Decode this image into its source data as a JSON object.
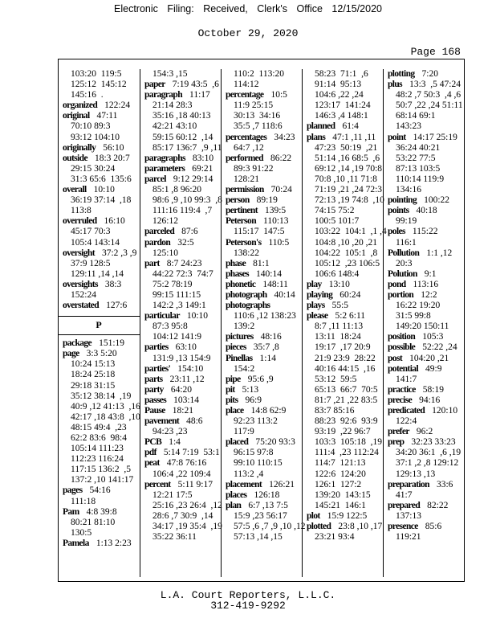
{
  "header": {
    "filing": "Electronic Filing: Received, Clerk's Office 12/15/2020",
    "date": "October 29, 2020",
    "page": "Page 168"
  },
  "footer": {
    "company": "L.A. Court Reporters, L.L.C.",
    "phone": "312-419-9292"
  },
  "columns": [
    [
      {
        "refs": [
          "103:20  119:5",
          "125:12  145:12",
          "145:16  ."
        ]
      },
      {
        "term": "organized",
        "refs": [
          "122:24"
        ]
      },
      {
        "term": "original",
        "refs": [
          "47:11",
          "70:10 89:3",
          "93:12 104:10"
        ]
      },
      {
        "term": "originally",
        "refs": [
          "56:10"
        ]
      },
      {
        "term": "outside",
        "refs": [
          "18:3 20:7",
          "29:15 30:24",
          "31:3 65:6  135:6"
        ]
      },
      {
        "term": "overall",
        "refs": [
          "10:10",
          "36:19 37:14  ,18",
          "113:8"
        ]
      },
      {
        "term": "overruled",
        "refs": [
          "16:10",
          "45:17 70:3",
          "105:4 143:14"
        ]
      },
      {
        "term": "oversight",
        "refs": [
          "37:2 ,3 ,9",
          "37:9 128:5",
          "129:11 ,14 ,14"
        ]
      },
      {
        "term": "oversights",
        "refs": [
          "38:3",
          "152:24"
        ]
      },
      {
        "term": "overstated",
        "refs": [
          "127:6"
        ]
      },
      {
        "section": "P"
      },
      {
        "term": "package",
        "refs": [
          "151:19"
        ]
      },
      {
        "term": "page",
        "refs": [
          "3:3 5:20",
          "10:24 15:13",
          "18:24 25:18",
          "29:18 31:15",
          "35:12 38:14  ,19",
          "40:9 ,12 41:13  ,16",
          "42:17 ,18 43:8  ,10",
          "48:15 49:4  ,23",
          "62:2 83:6  98:4",
          "105:14 111:23",
          "112:23 116:24",
          "117:15 136:2  ,5",
          "137:2 ,10 141:17"
        ]
      },
      {
        "term": "pages",
        "refs": [
          "54:16",
          "111:18"
        ]
      },
      {
        "term": "Pam",
        "refs": [
          "4:8 39:8",
          "80:21 81:10",
          "130:5"
        ]
      },
      {
        "term": "Pamela",
        "refs": [
          "1:13 2:23"
        ]
      }
    ],
    [
      {
        "refs": [
          "154:3 ,15"
        ]
      },
      {
        "term": "paper",
        "refs": [
          "7:19 43:5  ,6"
        ]
      },
      {
        "term": "paragraph",
        "refs": [
          "11:17",
          "21:14 28:3",
          "35:16 ,18 40:13",
          "42:21 43:10",
          "59:15 60:12  ,14",
          "85:17 136:7  ,9 ,11"
        ]
      },
      {
        "term": "paragraphs",
        "refs": [
          "83:10"
        ]
      },
      {
        "term": "parameters",
        "refs": [
          "69:21"
        ]
      },
      {
        "term": "parcel",
        "refs": [
          "9:12 29:14",
          "85:1 ,8 96:20",
          "98:6 ,9 ,10 99:3  ,8",
          "111:16 119:4  ,7",
          "126:12"
        ]
      },
      {
        "term": "parceled",
        "refs": [
          "87:6"
        ]
      },
      {
        "term": "pardon",
        "refs": [
          "32:5",
          "125:10"
        ]
      },
      {
        "term": "part",
        "refs": [
          "8:7 24:23",
          "44:22 72:3  74:7",
          "75:2 78:19",
          "99:15 111:15",
          "142:2 ,3 149:1"
        ]
      },
      {
        "term": "particular",
        "refs": [
          "10:10",
          "87:3 95:8",
          "104:12 141:9"
        ]
      },
      {
        "term": "parties",
        "refs": [
          "63:10",
          "131:9 ,13 154:9"
        ]
      },
      {
        "term": "parties'",
        "refs": [
          "154:10"
        ]
      },
      {
        "term": "parts",
        "refs": [
          "23:11 ,12"
        ]
      },
      {
        "term": "party",
        "refs": [
          "64:20"
        ]
      },
      {
        "term": "passes",
        "refs": [
          "103:14"
        ]
      },
      {
        "term": "Pause",
        "refs": [
          "18:21"
        ]
      },
      {
        "term": "pavement",
        "refs": [
          "48:6",
          "94:23 ,23"
        ]
      },
      {
        "term": "PCB",
        "refs": [
          "1:4"
        ]
      },
      {
        "term": "pdf",
        "refs": [
          "5:14 7:19  53:1"
        ]
      },
      {
        "term": "peat",
        "refs": [
          "47:8 76:16",
          "106:4 ,22 109:4"
        ]
      },
      {
        "term": "percent",
        "refs": [
          "5:11 9:17",
          "12:21 17:5",
          "25:16 ,23 26:4  ,12",
          "28:6 ,7 30:9  ,14",
          "34:17 ,19 35:4  ,19",
          "35:22 36:11"
        ]
      }
    ],
    [
      {
        "refs": [
          "110:2  113:20",
          "114:12"
        ]
      },
      {
        "term": "percentage",
        "refs": [
          "10:5",
          "11:9 25:15",
          "30:13  34:16",
          "35:5 ,7 118:6"
        ]
      },
      {
        "term": "percentages",
        "refs": [
          "34:23",
          "64:7 ,12"
        ]
      },
      {
        "term": "performed",
        "refs": [
          "86:22",
          "89:3 91:22",
          "128:21"
        ]
      },
      {
        "term": "permission",
        "refs": [
          "70:24"
        ]
      },
      {
        "term": "person",
        "refs": [
          "89:19"
        ]
      },
      {
        "term": "pertinent",
        "refs": [
          "139:5"
        ]
      },
      {
        "term": "Peterson",
        "refs": [
          "110:13",
          "115:17  147:5"
        ]
      },
      {
        "term": "Peterson's",
        "refs": [
          "110:5",
          "138:22"
        ]
      },
      {
        "term": "phase",
        "refs": [
          "81:1"
        ]
      },
      {
        "term": "phases",
        "refs": [
          "140:14"
        ]
      },
      {
        "term": "phonetic",
        "refs": [
          "148:11"
        ]
      },
      {
        "term": "photograph",
        "refs": [
          "40:14"
        ]
      },
      {
        "term": "photographs",
        "nofirst": true,
        "refs": [
          "110:6 ,12 138:23",
          "139:2"
        ]
      },
      {
        "term": "pictures",
        "refs": [
          "48:16"
        ]
      },
      {
        "term": "pieces",
        "refs": [
          "35:7 ,8"
        ]
      },
      {
        "term": "Pinellas",
        "refs": [
          "1:14",
          "154:2"
        ]
      },
      {
        "term": "pipe",
        "refs": [
          "95:6 ,9"
        ]
      },
      {
        "term": "pit",
        "refs": [
          "5:13"
        ]
      },
      {
        "term": "pits",
        "refs": [
          "96:9"
        ]
      },
      {
        "term": "place",
        "refs": [
          "14:8 62:9",
          "92:23 113:2",
          "117:9"
        ]
      },
      {
        "term": "placed",
        "refs": [
          "75:20 93:3",
          "96:15 97:8",
          "99:10 110:15",
          "113:2 ,4"
        ]
      },
      {
        "term": "placement",
        "refs": [
          "126:21"
        ]
      },
      {
        "term": "places",
        "refs": [
          "126:18"
        ]
      },
      {
        "term": "plan",
        "refs": [
          "6:7 ,13 7:5",
          "15:9 ,23 56:17",
          "57:5 ,6 ,7 ,9 ,10 ,12",
          "57:13 ,14 ,15"
        ]
      }
    ],
    [
      {
        "refs": [
          "58:23  71:1  ,6",
          "91:14  95:13",
          "104:6 ,22 ,24",
          "123:17  141:24",
          "146:3 ,4 148:1"
        ]
      },
      {
        "term": "planned",
        "refs": [
          "61:4"
        ]
      },
      {
        "term": "plans",
        "refs": [
          "47:1 ,11 ,11",
          "47:23  50:19  ,21",
          "51:14 ,16 68:5  ,6",
          "69:12 ,14 ,19 70:8",
          "70:8 ,10 ,11 71:8",
          "71:19 ,21 ,24 72:3",
          "72:13 ,19 74:8  ,10",
          "74:15 75:2",
          "100:5 101:7",
          "103:22  104:1  ,1 ,4",
          "104:8 ,10 ,20 ,21",
          "104:22  105:1  ,8",
          "105:12  ,23 106:5",
          "106:6 148:4"
        ]
      },
      {
        "term": "play",
        "refs": [
          "13:10"
        ]
      },
      {
        "term": "playing",
        "refs": [
          "60:24"
        ]
      },
      {
        "term": "plays",
        "refs": [
          "55:5"
        ]
      },
      {
        "term": "please",
        "refs": [
          "5:2 6:11",
          "8:7 ,11 11:13",
          "13:11  18:24",
          "19:17  ,17 20:9",
          "21:9 23:9  28:22",
          "40:16 44:15  ,16",
          "53:12  59:5",
          "65:13  66:7  70:5",
          "81:7 ,21 ,22 83:5",
          "83:7 85:16",
          "88:23  92:6  93:9",
          "93:19  ,22 96:7",
          "103:3  105:18  ,19",
          "111:4  ,23 112:24",
          "114:7  121:13",
          "122:6  124:20",
          "126:1  127:2",
          "139:20  143:15",
          "145:21  146:1"
        ]
      },
      {
        "term": "plot",
        "refs": [
          "15:9 122:5"
        ]
      },
      {
        "term": "plotted",
        "refs": [
          "23:8 ,10 ,17",
          "23:21 93:4"
        ]
      }
    ],
    [
      {
        "term": "plotting",
        "refs": [
          "7:20"
        ]
      },
      {
        "term": "plus",
        "refs": [
          "13:3  ,5 47:24",
          "48:2 ,7 50:3  ,4 ,6",
          "50:7 ,22 ,24 51:11",
          "68:14 69:1",
          "143:23"
        ]
      },
      {
        "term": "point",
        "refs": [
          "14:17 25:19",
          "36:24 40:21",
          "53:22 77:5",
          "87:13 103:5",
          "110:14 119:9",
          "134:16"
        ]
      },
      {
        "term": "pointing",
        "refs": [
          "100:22"
        ]
      },
      {
        "term": "points",
        "refs": [
          "40:18",
          "99:19"
        ]
      },
      {
        "term": "poles",
        "refs": [
          "115:22",
          "116:1"
        ]
      },
      {
        "term": "Pollution",
        "refs": [
          "1:1 ,12",
          "20:3"
        ]
      },
      {
        "term": "Polution",
        "refs": [
          "9:1"
        ]
      },
      {
        "term": "pond",
        "refs": [
          "113:16"
        ]
      },
      {
        "term": "portion",
        "refs": [
          "12:2",
          "16:22 19:20",
          "31:5 99:8",
          "149:20 150:11"
        ]
      },
      {
        "term": "position",
        "refs": [
          "105:3"
        ]
      },
      {
        "term": "possible",
        "refs": [
          "52:22 ,24"
        ]
      },
      {
        "term": "post",
        "refs": [
          "104:20 ,21"
        ]
      },
      {
        "term": "potential",
        "refs": [
          "49:9",
          "141:7"
        ]
      },
      {
        "term": "practice",
        "refs": [
          "58:19"
        ]
      },
      {
        "term": "precise",
        "refs": [
          "94:16"
        ]
      },
      {
        "term": "predicated",
        "refs": [
          "120:10",
          "122:4"
        ]
      },
      {
        "term": "prefer",
        "refs": [
          "96:2"
        ]
      },
      {
        "term": "prep",
        "refs": [
          "32:23 33:23",
          "34:20 36:1  ,6 ,19",
          "37:1 ,2 ,8 129:12",
          "129:13 ,13"
        ]
      },
      {
        "term": "preparation",
        "refs": [
          "33:6",
          "41:7"
        ]
      },
      {
        "term": "prepared",
        "refs": [
          "82:22",
          "137:13"
        ]
      },
      {
        "term": "presence",
        "refs": [
          "85:6",
          "119:21"
        ]
      }
    ]
  ]
}
